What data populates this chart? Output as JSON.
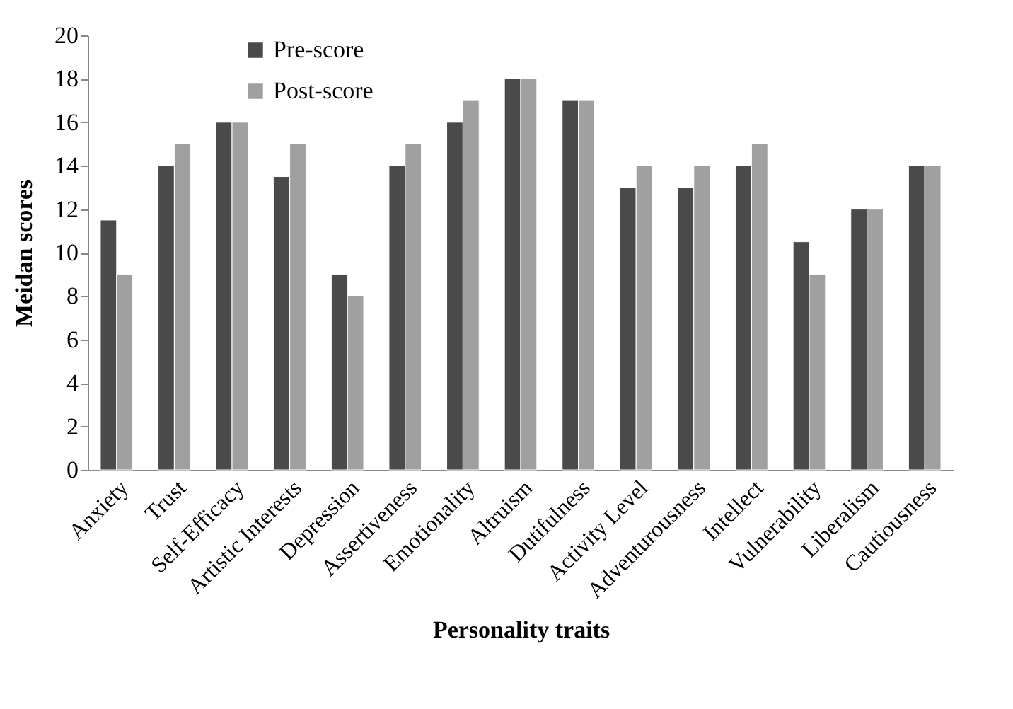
{
  "chart_data": {
    "type": "bar",
    "xlabel": "Personality traits",
    "ylabel": "Meidan scores",
    "categories": [
      "Anxiety",
      "Trust",
      "Self-Efficacy",
      "Artistic Interests",
      "Depression",
      "Assertiveness",
      "Emotionality",
      "Altruism",
      "Dutifulness",
      "Activity Level",
      "Adventurousness",
      "Intellect",
      "Vulnerability",
      "Liberalism",
      "Cautiousness"
    ],
    "series": [
      {
        "name": "Pre-score",
        "color": "#4a4a4a",
        "values": [
          11.5,
          14,
          16,
          13.5,
          9,
          14,
          16,
          18,
          17,
          13,
          13,
          14,
          10.5,
          12,
          14
        ]
      },
      {
        "name": "Post-score",
        "color": "#a0a0a0",
        "values": [
          9,
          15,
          16,
          15,
          8,
          15,
          17,
          18,
          17,
          14,
          14,
          15,
          9,
          12,
          14
        ]
      }
    ],
    "ylim": [
      0,
      20
    ],
    "yticks": [
      0,
      2,
      4,
      6,
      8,
      10,
      12,
      14,
      16,
      18,
      20
    ],
    "grid": false,
    "legend": "top left"
  }
}
